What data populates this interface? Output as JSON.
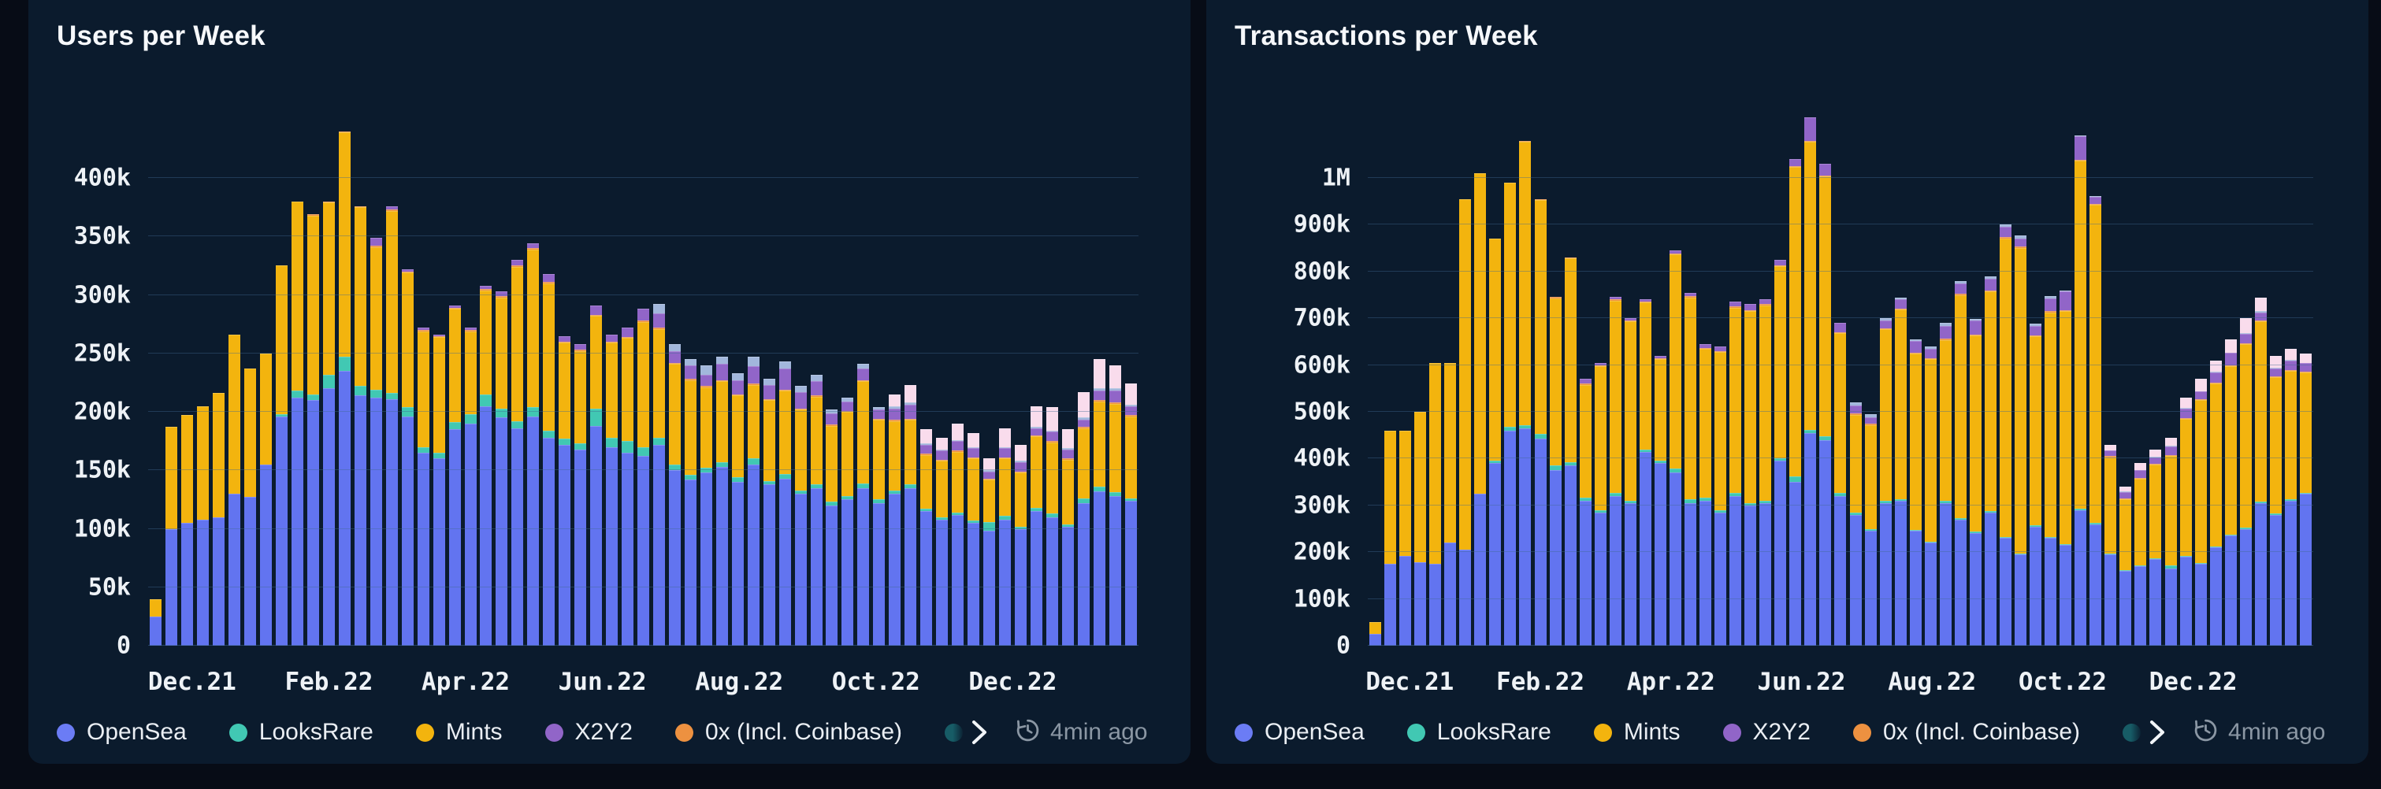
{
  "page": {
    "background": "#070c16",
    "card_background": "#0b1b2d",
    "grid_color": "#406892",
    "title_color": "#f6f8fb",
    "axis_text_color": "#eef2f6",
    "muted_text_color": "#8b97a4",
    "legend_scroll_icon": "chevron-right-icon",
    "refresh_icon": "clock-refresh-icon"
  },
  "chart_data": [
    {
      "type": "bar",
      "stacked": true,
      "title": "Users per Week",
      "value_unit": "thousands of users",
      "grid": true,
      "legend_position": "bottom",
      "updated": "4min ago",
      "y_axis": {
        "max_grid": 400,
        "ticks": [
          {
            "v": 0,
            "label": "0"
          },
          {
            "v": 50,
            "label": "50k"
          },
          {
            "v": 100,
            "label": "100k"
          },
          {
            "v": 150,
            "label": "150k"
          },
          {
            "v": 200,
            "label": "200k"
          },
          {
            "v": 250,
            "label": "250k"
          },
          {
            "v": 300,
            "label": "300k"
          },
          {
            "v": 350,
            "label": "350k"
          },
          {
            "v": 400,
            "label": "400k"
          }
        ]
      },
      "x_ticks": [
        {
          "label": "Dec.21",
          "week": 2.3
        },
        {
          "label": "Feb.22",
          "week": 11
        },
        {
          "label": "Apr.22",
          "week": 19.7
        },
        {
          "label": "Jun.22",
          "week": 28.4
        },
        {
          "label": "Aug.22",
          "week": 37.1
        },
        {
          "label": "Oct.22",
          "week": 45.8
        },
        {
          "label": "Dec.22",
          "week": 54.5
        }
      ],
      "series": [
        {
          "name": "OpenSea",
          "color": "#6274f0",
          "values": [
            25,
            100,
            105,
            108,
            110,
            130,
            127,
            155,
            196,
            212,
            210,
            220,
            235,
            214,
            212,
            211,
            196,
            165,
            160,
            185,
            190,
            205,
            195,
            186,
            196,
            178,
            172,
            168,
            188,
            170,
            165,
            162,
            172,
            150,
            142,
            148,
            153,
            140,
            155,
            138,
            143,
            130,
            135,
            120,
            125,
            135,
            122,
            130,
            135,
            115,
            108,
            112,
            105,
            98,
            108,
            100,
            115,
            110,
            102,
            122,
            132,
            128,
            124
          ]
        },
        {
          "name": "LooksRare",
          "color": "#41c8b3",
          "values": [
            0,
            0,
            0,
            0,
            0,
            0,
            0,
            0,
            2,
            6,
            5,
            12,
            12,
            8,
            7,
            5,
            8,
            5,
            5,
            6,
            8,
            10,
            8,
            6,
            8,
            6,
            5,
            5,
            15,
            8,
            10,
            8,
            6,
            5,
            4,
            4,
            4,
            4,
            5,
            3,
            4,
            3,
            3,
            3,
            3,
            4,
            3,
            3,
            3,
            2,
            2,
            2,
            2,
            8,
            3,
            2,
            3,
            3,
            2,
            4,
            4,
            3,
            2
          ]
        },
        {
          "name": "Mints",
          "color": "#f3b40e",
          "values": [
            15,
            87,
            92,
            97,
            106,
            136,
            110,
            95,
            127,
            162,
            153,
            147,
            192,
            153,
            122,
            156,
            115,
            99,
            99,
            97,
            71,
            89,
            95,
            132,
            135,
            126,
            82,
            79,
            79,
            81,
            88,
            107,
            93,
            86,
            81,
            69,
            69,
            70,
            63,
            69,
            71,
            69,
            75,
            65,
            72,
            87,
            68,
            59,
            55,
            46,
            48,
            52,
            53,
            36,
            49,
            46,
            61,
            61,
            55,
            60,
            73,
            76,
            70
          ]
        },
        {
          "name": "0x (Incl. Coinbase)",
          "color": "#ed9140",
          "values": [
            0,
            0,
            0,
            0,
            0,
            0,
            0,
            0,
            0,
            0,
            1,
            1,
            1,
            1,
            1,
            1,
            1,
            1,
            1,
            1,
            1,
            1,
            1,
            1,
            1,
            1,
            1,
            1,
            1,
            1,
            1,
            1,
            1,
            1,
            1,
            1,
            1,
            1,
            1,
            1,
            1,
            1,
            1,
            1,
            1,
            1,
            1,
            1,
            1,
            1,
            1,
            1,
            1,
            1,
            1,
            1,
            1,
            1,
            1,
            1,
            1,
            1,
            1
          ]
        },
        {
          "name": "X2Y2",
          "color": "#9165c8",
          "values": [
            0,
            0,
            0,
            0,
            0,
            0,
            0,
            0,
            0,
            0,
            0,
            0,
            0,
            0,
            7,
            3,
            2,
            2,
            1,
            2,
            2,
            3,
            4,
            5,
            4,
            7,
            5,
            5,
            8,
            6,
            8,
            10,
            12,
            10,
            12,
            10,
            14,
            12,
            15,
            12,
            18,
            14,
            12,
            10,
            8,
            10,
            8,
            10,
            12,
            8,
            8,
            8,
            8,
            6,
            8,
            8,
            6,
            8,
            8,
            6,
            8,
            10,
            8
          ]
        },
        {
          "name": "unlabeled-lightblue",
          "color": "#a2b7dc",
          "values": [
            0,
            0,
            0,
            0,
            0,
            0,
            0,
            0,
            0,
            0,
            0,
            0,
            0,
            0,
            0,
            0,
            0,
            0,
            0,
            0,
            0,
            0,
            0,
            0,
            0,
            0,
            0,
            0,
            0,
            0,
            0,
            0,
            8,
            6,
            5,
            8,
            6,
            6,
            8,
            5,
            6,
            5,
            6,
            3,
            3,
            4,
            2,
            2,
            2,
            1,
            1,
            1,
            1,
            1,
            1,
            1,
            1,
            1,
            1,
            2,
            2,
            2,
            1
          ]
        },
        {
          "name": "unlabeled-pink",
          "color": "#f9dcec",
          "values": [
            0,
            0,
            0,
            0,
            0,
            0,
            0,
            0,
            0,
            0,
            0,
            0,
            0,
            0,
            0,
            0,
            0,
            0,
            0,
            0,
            0,
            0,
            0,
            0,
            0,
            0,
            0,
            0,
            0,
            0,
            0,
            0,
            0,
            0,
            0,
            0,
            0,
            0,
            0,
            0,
            0,
            0,
            0,
            0,
            0,
            0,
            0,
            10,
            15,
            12,
            10,
            14,
            12,
            10,
            16,
            14,
            18,
            20,
            16,
            22,
            25,
            20,
            18
          ]
        }
      ],
      "legend": [
        {
          "label": "OpenSea",
          "color": "#6b7cf5"
        },
        {
          "label": "LooksRare",
          "color": "#41c8b3"
        },
        {
          "label": "Mints",
          "color": "#f3b40e"
        },
        {
          "label": "X2Y2",
          "color": "#9165c8"
        },
        {
          "label": "0x (Incl. Coinbase)",
          "color": "#ed9140"
        }
      ],
      "legend_more_color": "#175c66"
    },
    {
      "type": "bar",
      "stacked": true,
      "title": "Transactions per Week",
      "value_unit": "thousands of transactions",
      "grid": true,
      "legend_position": "bottom",
      "updated": "4min ago",
      "y_axis": {
        "max_grid": 1000,
        "ticks": [
          {
            "v": 0,
            "label": "0"
          },
          {
            "v": 100,
            "label": "100k"
          },
          {
            "v": 200,
            "label": "200k"
          },
          {
            "v": 300,
            "label": "300k"
          },
          {
            "v": 400,
            "label": "400k"
          },
          {
            "v": 500,
            "label": "500k"
          },
          {
            "v": 600,
            "label": "600k"
          },
          {
            "v": 700,
            "label": "700k"
          },
          {
            "v": 800,
            "label": "800k"
          },
          {
            "v": 900,
            "label": "900k"
          },
          {
            "v": 1000,
            "label": "1M"
          }
        ]
      },
      "x_ticks": [
        {
          "label": "Dec.21",
          "week": 2.3
        },
        {
          "label": "Feb.22",
          "week": 11
        },
        {
          "label": "Apr.22",
          "week": 19.7
        },
        {
          "label": "Jun.22",
          "week": 28.4
        },
        {
          "label": "Aug.22",
          "week": 37.1
        },
        {
          "label": "Oct.22",
          "week": 45.8
        },
        {
          "label": "Dec.22",
          "week": 54.5
        }
      ],
      "series": [
        {
          "name": "OpenSea",
          "color": "#6274f0",
          "values": [
            25,
            175,
            192,
            178,
            175,
            220,
            205,
            325,
            390,
            460,
            465,
            443,
            375,
            385,
            310,
            285,
            320,
            305,
            415,
            390,
            370,
            305,
            310,
            285,
            320,
            300,
            305,
            395,
            350,
            455,
            440,
            320,
            280,
            245,
            305,
            310,
            245,
            220,
            305,
            270,
            240,
            285,
            230,
            195,
            255,
            230,
            215,
            290,
            260,
            195,
            160,
            170,
            185,
            165,
            190,
            175,
            210,
            235,
            250,
            305,
            280,
            310,
            325
          ]
        },
        {
          "name": "LooksRare",
          "color": "#41c8b3",
          "values": [
            0,
            0,
            0,
            0,
            0,
            0,
            0,
            0,
            5,
            8,
            6,
            10,
            10,
            8,
            6,
            5,
            6,
            5,
            5,
            6,
            8,
            8,
            6,
            5,
            6,
            5,
            4,
            5,
            12,
            6,
            8,
            6,
            5,
            4,
            4,
            4,
            3,
            3,
            5,
            3,
            4,
            3,
            3,
            2,
            3,
            3,
            2,
            3,
            3,
            2,
            2,
            2,
            2,
            6,
            2,
            2,
            2,
            2,
            2,
            3,
            3,
            3,
            2
          ]
        },
        {
          "name": "Mints",
          "color": "#f3b40e",
          "values": [
            25,
            285,
            268,
            322,
            430,
            385,
            750,
            685,
            475,
            522,
            607,
            500,
            358,
            435,
            242,
            307,
            412,
            384,
            314,
            217,
            459,
            432,
            319,
            338,
            397,
            411,
            419,
            411,
            661,
            617,
            555,
            342,
            209,
            223,
            367,
            405,
            376,
            389,
            344,
            477,
            419,
            469,
            638,
            654,
            403,
            480,
            499,
            744,
            679,
            206,
            151,
            185,
            200,
            235,
            293,
            348,
            349,
            361,
            393,
            385,
            291,
            275,
            257
          ]
        },
        {
          "name": "0x (Incl. Coinbase)",
          "color": "#ed9140",
          "values": [
            0,
            0,
            0,
            0,
            0,
            0,
            0,
            0,
            0,
            0,
            2,
            2,
            2,
            2,
            2,
            2,
            2,
            2,
            2,
            2,
            2,
            2,
            2,
            2,
            2,
            2,
            2,
            2,
            2,
            2,
            2,
            2,
            2,
            2,
            2,
            2,
            2,
            2,
            2,
            2,
            2,
            2,
            2,
            2,
            2,
            2,
            2,
            2,
            2,
            2,
            2,
            2,
            2,
            2,
            2,
            2,
            2,
            2,
            2,
            2,
            2,
            2,
            2
          ]
        },
        {
          "name": "X2Y2",
          "color": "#9165c8",
          "values": [
            0,
            0,
            0,
            0,
            0,
            0,
            0,
            0,
            0,
            0,
            0,
            0,
            0,
            0,
            10,
            6,
            5,
            4,
            4,
            5,
            6,
            8,
            8,
            10,
            10,
            12,
            10,
            12,
            15,
            50,
            25,
            20,
            18,
            15,
            18,
            20,
            25,
            20,
            28,
            22,
            30,
            25,
            22,
            18,
            20,
            28,
            40,
            50,
            15,
            12,
            14,
            16,
            14,
            18,
            20,
            16,
            22,
            26,
            20,
            18,
            16,
            20,
            18
          ]
        },
        {
          "name": "unlabeled-lightblue",
          "color": "#a2b7dc",
          "values": [
            0,
            0,
            0,
            0,
            0,
            0,
            0,
            0,
            0,
            0,
            0,
            0,
            0,
            0,
            0,
            0,
            0,
            0,
            0,
            0,
            0,
            0,
            0,
            0,
            0,
            0,
            0,
            0,
            0,
            0,
            0,
            0,
            6,
            6,
            4,
            4,
            4,
            6,
            6,
            6,
            4,
            6,
            5,
            6,
            5,
            4,
            2,
            2,
            2,
            1,
            1,
            1,
            1,
            1,
            1,
            1,
            1,
            1,
            1,
            2,
            2,
            2,
            1
          ]
        },
        {
          "name": "unlabeled-pink",
          "color": "#f9dcec",
          "values": [
            0,
            0,
            0,
            0,
            0,
            0,
            0,
            0,
            0,
            0,
            0,
            0,
            0,
            0,
            0,
            0,
            0,
            0,
            0,
            0,
            0,
            0,
            0,
            0,
            0,
            0,
            0,
            0,
            0,
            0,
            0,
            0,
            0,
            0,
            0,
            0,
            0,
            0,
            0,
            0,
            0,
            0,
            0,
            0,
            0,
            0,
            0,
            0,
            0,
            12,
            10,
            14,
            16,
            18,
            22,
            26,
            24,
            28,
            32,
            30,
            26,
            22,
            20
          ]
        }
      ],
      "legend": [
        {
          "label": "OpenSea",
          "color": "#6b7cf5"
        },
        {
          "label": "LooksRare",
          "color": "#41c8b3"
        },
        {
          "label": "Mints",
          "color": "#f3b40e"
        },
        {
          "label": "X2Y2",
          "color": "#9165c8"
        },
        {
          "label": "0x (Incl. Coinbase)",
          "color": "#ed9140"
        }
      ],
      "legend_more_color": "#175c66"
    }
  ]
}
